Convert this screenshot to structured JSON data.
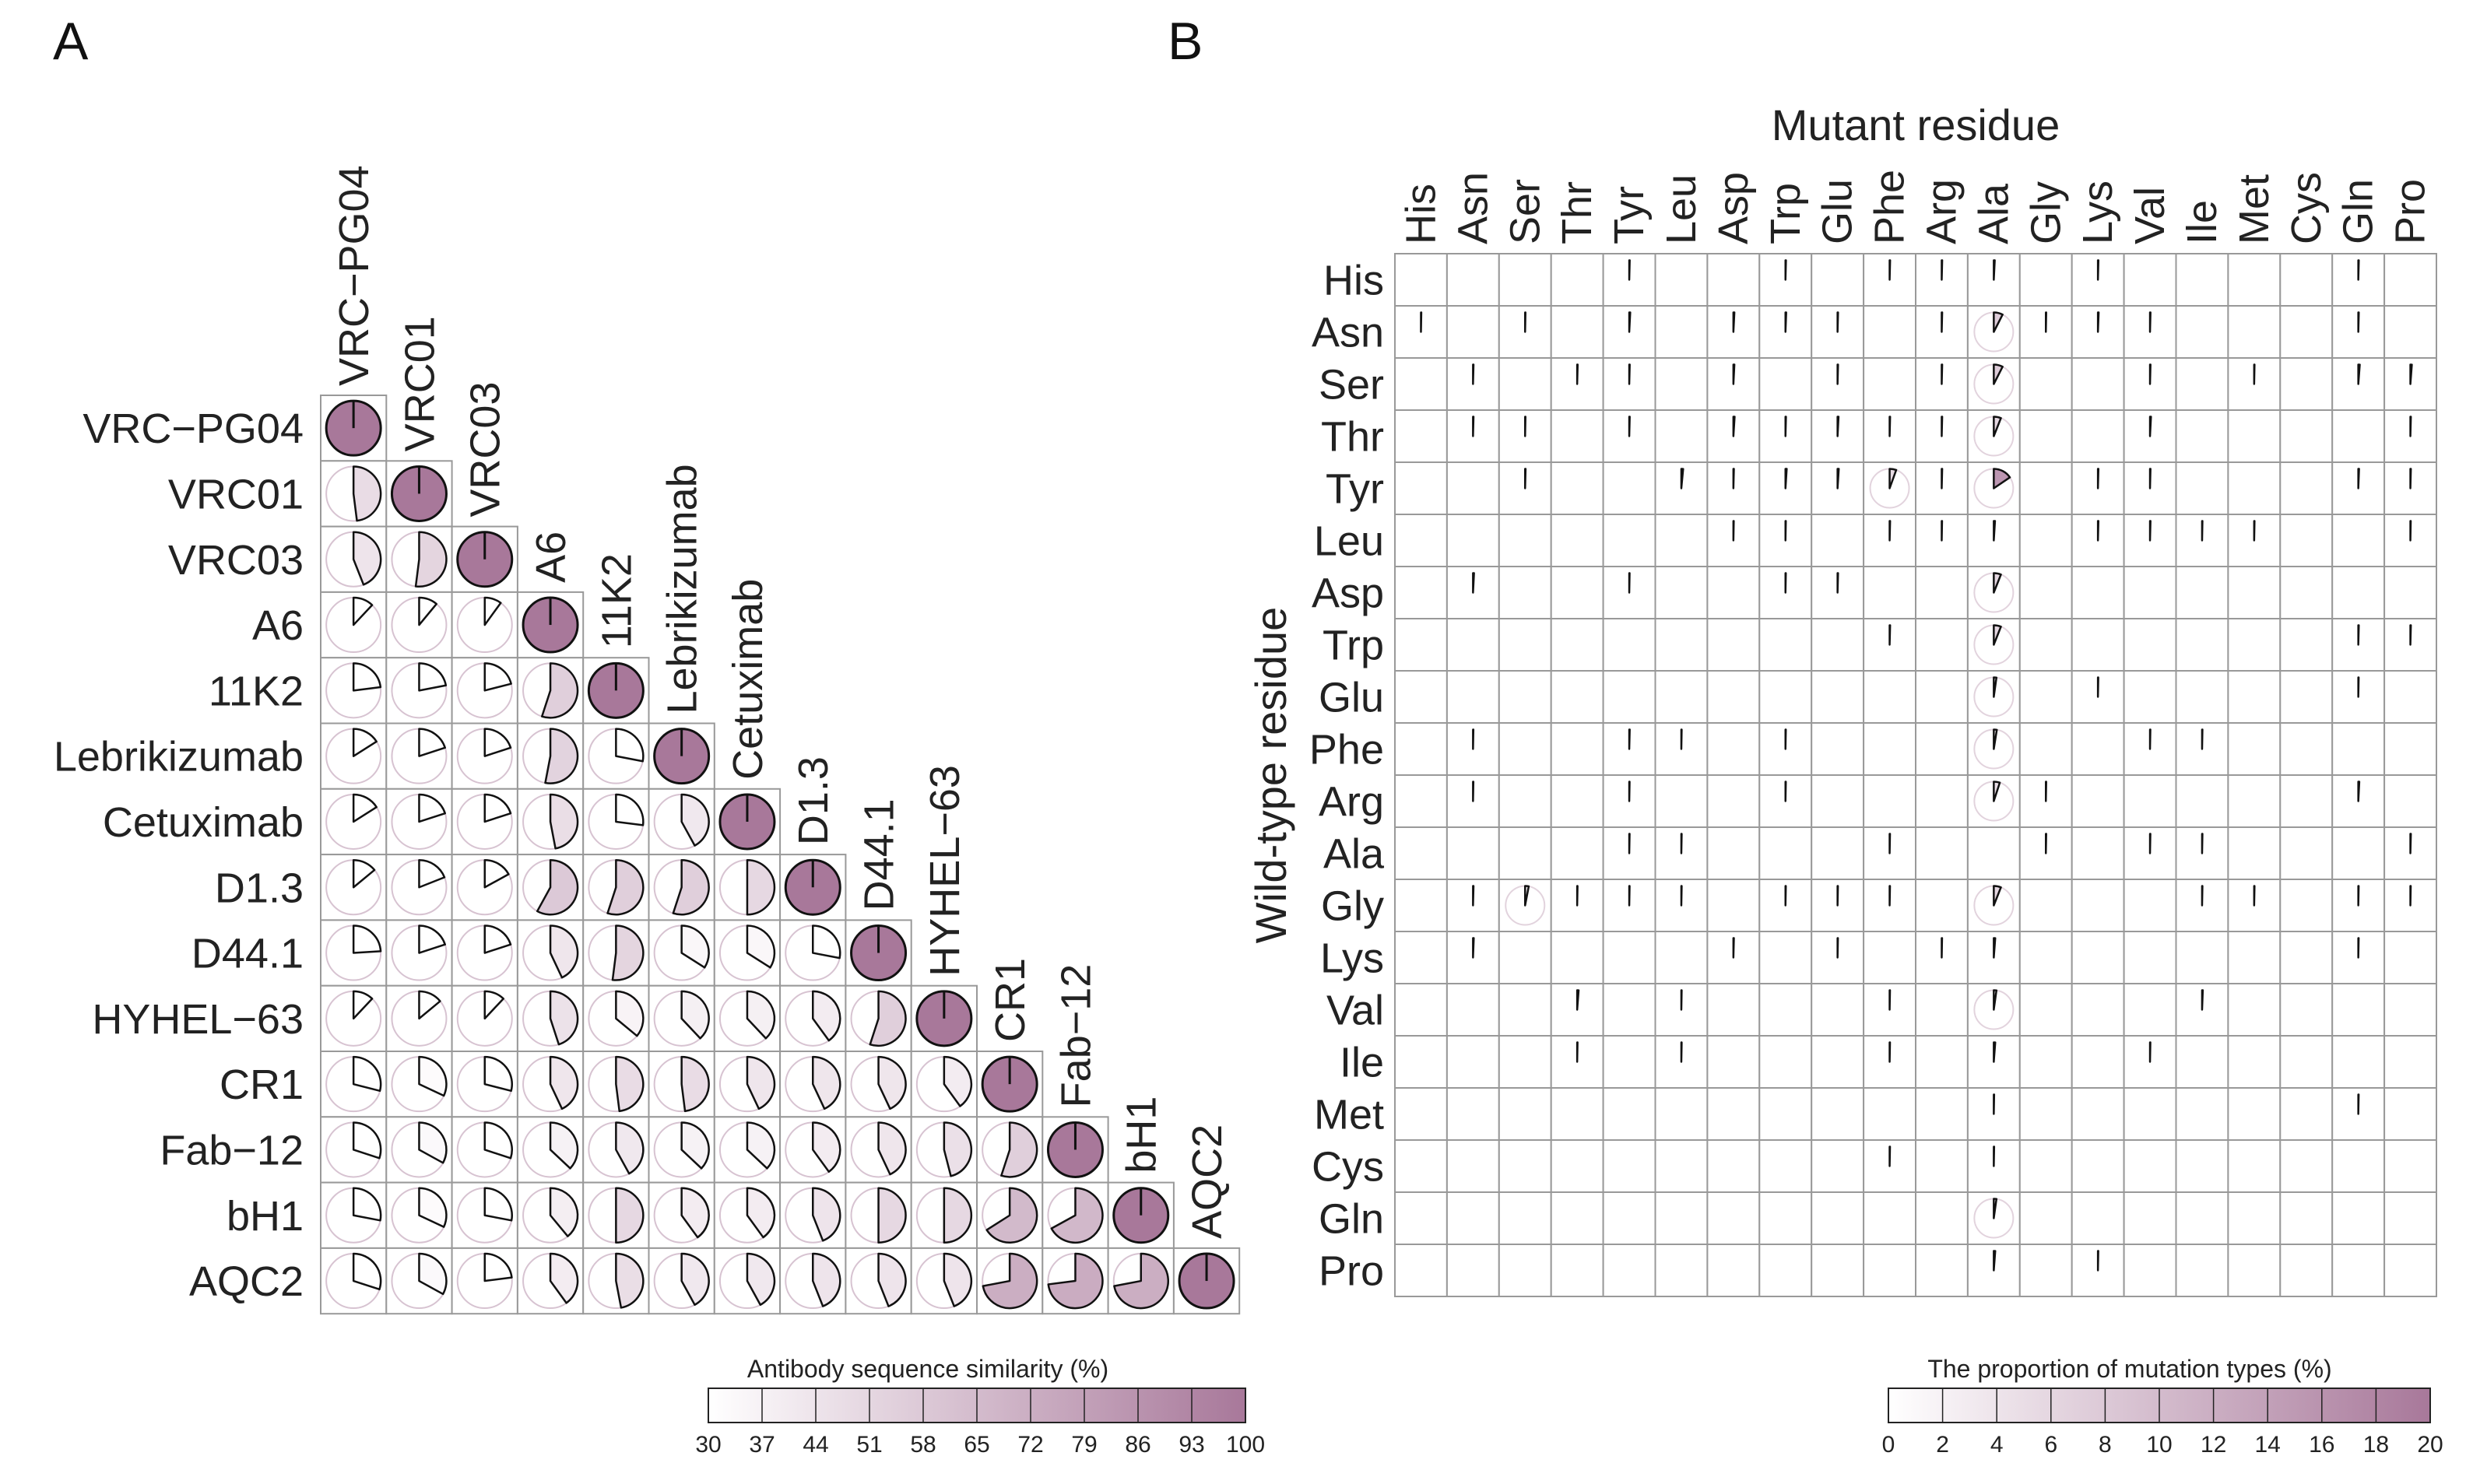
{
  "panel_a_label": "A",
  "panel_b_label": "B",
  "colors": {
    "low": "#ffffff",
    "high": "#a8789a",
    "cell_border": "#999999",
    "outline": "#111111"
  },
  "chart_data": [
    {
      "type": "correlogram-pie",
      "title": "",
      "labels": [
        "VRC−PG04",
        "VRC01",
        "VRC03",
        "A6",
        "11K2",
        "Lebrikizumab",
        "Cetuximab",
        "D1.3",
        "D44.1",
        "HYHEL−63",
        "CR1",
        "Fab−12",
        "bH1",
        "AQC2"
      ],
      "lower_triangle_similarity_percent": [
        [
          100
        ],
        [
          48,
          100
        ],
        [
          44,
          52,
          100
        ],
        [
          12,
          11,
          10,
          100
        ],
        [
          23,
          22,
          21,
          55,
          100
        ],
        [
          16,
          20,
          20,
          53,
          28,
          100
        ],
        [
          16,
          20,
          20,
          47,
          27,
          42,
          100
        ],
        [
          14,
          19,
          17,
          58,
          55,
          55,
          50,
          100
        ],
        [
          24,
          20,
          20,
          43,
          52,
          34,
          34,
          28,
          100
        ],
        [
          12,
          14,
          12,
          45,
          36,
          38,
          38,
          40,
          55,
          100
        ],
        [
          29,
          32,
          29,
          43,
          48,
          48,
          43,
          43,
          43,
          40,
          100
        ],
        [
          30,
          33,
          30,
          37,
          42,
          37,
          37,
          40,
          43,
          46,
          55,
          100
        ],
        [
          28,
          32,
          28,
          39,
          50,
          40,
          40,
          44,
          50,
          50,
          66,
          67,
          100
        ],
        [
          30,
          33,
          23,
          40,
          47,
          42,
          42,
          44,
          44,
          44,
          72,
          73,
          72,
          100
        ]
      ],
      "colorbar": {
        "title": "Antibody sequence similarity (%)",
        "min": 30,
        "max": 100,
        "ticks": [
          30,
          37,
          44,
          51,
          58,
          65,
          72,
          79,
          86,
          93,
          100
        ]
      }
    },
    {
      "type": "heatmap-pie",
      "xlabel": "Mutant residue",
      "ylabel": "Wild-type residue",
      "columns": [
        "His",
        "Asn",
        "Ser",
        "Thr",
        "Tyr",
        "Leu",
        "Asp",
        "Trp",
        "Glu",
        "Phe",
        "Arg",
        "Ala",
        "Gly",
        "Lys",
        "Val",
        "Ile",
        "Met",
        "Cys",
        "Gln",
        "Pro"
      ],
      "rows": [
        "His",
        "Asn",
        "Ser",
        "Thr",
        "Tyr",
        "Leu",
        "Asp",
        "Trp",
        "Glu",
        "Phe",
        "Arg",
        "Ala",
        "Gly",
        "Lys",
        "Val",
        "Ile",
        "Met",
        "Cys",
        "Gln",
        "Pro"
      ],
      "proportion_percent": [
        [
          0,
          0,
          0,
          0,
          0.4,
          0,
          0,
          0.4,
          0,
          0.4,
          0.4,
          0.8,
          0,
          0.4,
          0,
          0,
          0,
          0,
          0.4,
          0
        ],
        [
          0.3,
          0,
          0.3,
          0,
          0.8,
          0,
          0.8,
          0.6,
          0.4,
          0,
          0.4,
          7.5,
          0.3,
          0.6,
          0.4,
          0,
          0,
          0,
          0.4,
          0
        ],
        [
          0,
          0.4,
          0,
          0.4,
          0.4,
          0,
          0.8,
          0,
          0.4,
          0,
          0.4,
          7.5,
          0,
          0,
          0.4,
          0,
          0.3,
          0,
          1.2,
          1.2
        ],
        [
          0,
          0.4,
          0.3,
          0,
          0.4,
          0,
          1.0,
          0.4,
          0.8,
          0.4,
          0.4,
          6.0,
          0,
          0,
          0.8,
          0,
          0,
          0,
          0,
          0.4
        ],
        [
          0,
          0,
          0.4,
          0,
          0,
          1.5,
          0.4,
          1.0,
          1.0,
          5.5,
          0.4,
          15.5,
          0,
          0.4,
          0.4,
          0,
          0,
          0,
          0.6,
          0.4
        ],
        [
          0,
          0,
          0,
          0,
          0,
          0,
          0.3,
          0.3,
          0,
          0.4,
          0.3,
          1.0,
          0,
          0.4,
          0.4,
          0.3,
          0.3,
          0,
          0,
          0.3
        ],
        [
          0,
          0.8,
          0,
          0,
          0.3,
          0,
          0,
          0.3,
          0.4,
          0,
          0,
          6.0,
          0,
          0,
          0,
          0,
          0,
          0,
          0,
          0
        ],
        [
          0,
          0,
          0,
          0,
          0,
          0,
          0,
          0,
          0,
          0.4,
          0,
          6.0,
          0,
          0,
          0,
          0,
          0,
          0,
          0.4,
          0.4
        ],
        [
          0,
          0,
          0,
          0,
          0,
          0,
          0,
          0,
          0,
          0,
          0,
          2.2,
          0,
          0.3,
          0,
          0,
          0,
          0,
          0.3,
          0
        ],
        [
          0,
          0.3,
          0,
          0,
          0.4,
          0.3,
          0,
          0.3,
          0,
          0,
          0,
          2.5,
          0,
          0,
          0.3,
          0.3,
          0,
          0,
          0,
          0
        ],
        [
          0,
          0.3,
          0,
          0,
          0.3,
          0,
          0,
          0.3,
          0,
          0,
          0,
          5.0,
          0.3,
          0,
          0,
          0,
          0,
          0,
          0.8,
          0
        ],
        [
          0,
          0,
          0,
          0,
          0.3,
          0.3,
          0,
          0,
          0,
          0.3,
          0,
          0,
          0.3,
          0,
          0.3,
          0.3,
          0,
          0,
          0,
          0.4
        ],
        [
          0,
          0.4,
          3.0,
          0.3,
          0.3,
          0.3,
          0,
          0.3,
          0.3,
          0.3,
          0,
          6.0,
          0,
          0,
          0,
          0.3,
          0.3,
          0,
          0.3,
          0.3
        ],
        [
          0,
          0.6,
          0,
          0,
          0,
          0,
          0.4,
          0,
          0.3,
          0,
          0.3,
          1.2,
          0,
          0,
          0,
          0,
          0,
          0,
          0.3,
          0
        ],
        [
          0,
          0,
          0,
          1.2,
          0,
          0.3,
          0,
          0,
          0,
          0.3,
          0,
          2.2,
          0,
          0,
          0,
          0.6,
          0,
          0,
          0,
          0
        ],
        [
          0,
          0,
          0,
          0.3,
          0,
          0.3,
          0,
          0,
          0,
          0.3,
          0,
          1.2,
          0,
          0,
          0.3,
          0,
          0,
          0,
          0,
          0
        ],
        [
          0,
          0,
          0,
          0,
          0,
          0,
          0,
          0,
          0,
          0,
          0,
          0.3,
          0,
          0,
          0,
          0,
          0,
          0,
          0.3,
          0
        ],
        [
          0,
          0,
          0,
          0,
          0,
          0,
          0,
          0,
          0,
          0.3,
          0,
          0.3,
          0,
          0,
          0,
          0,
          0,
          0,
          0,
          0
        ],
        [
          0,
          0,
          0,
          0,
          0,
          0,
          0,
          0,
          0,
          0,
          0,
          2.2,
          0,
          0,
          0,
          0,
          0,
          0,
          0,
          0
        ],
        [
          0,
          0,
          0,
          0,
          0,
          0,
          0,
          0,
          0,
          0,
          0,
          1.2,
          0,
          0.3,
          0,
          0,
          0,
          0,
          0,
          0
        ]
      ],
      "colorbar": {
        "title": "The proportion of mutation types (%)",
        "min": 0,
        "max": 20,
        "ticks": [
          0,
          2,
          4,
          6,
          8,
          10,
          12,
          14,
          16,
          18,
          20
        ]
      }
    }
  ]
}
